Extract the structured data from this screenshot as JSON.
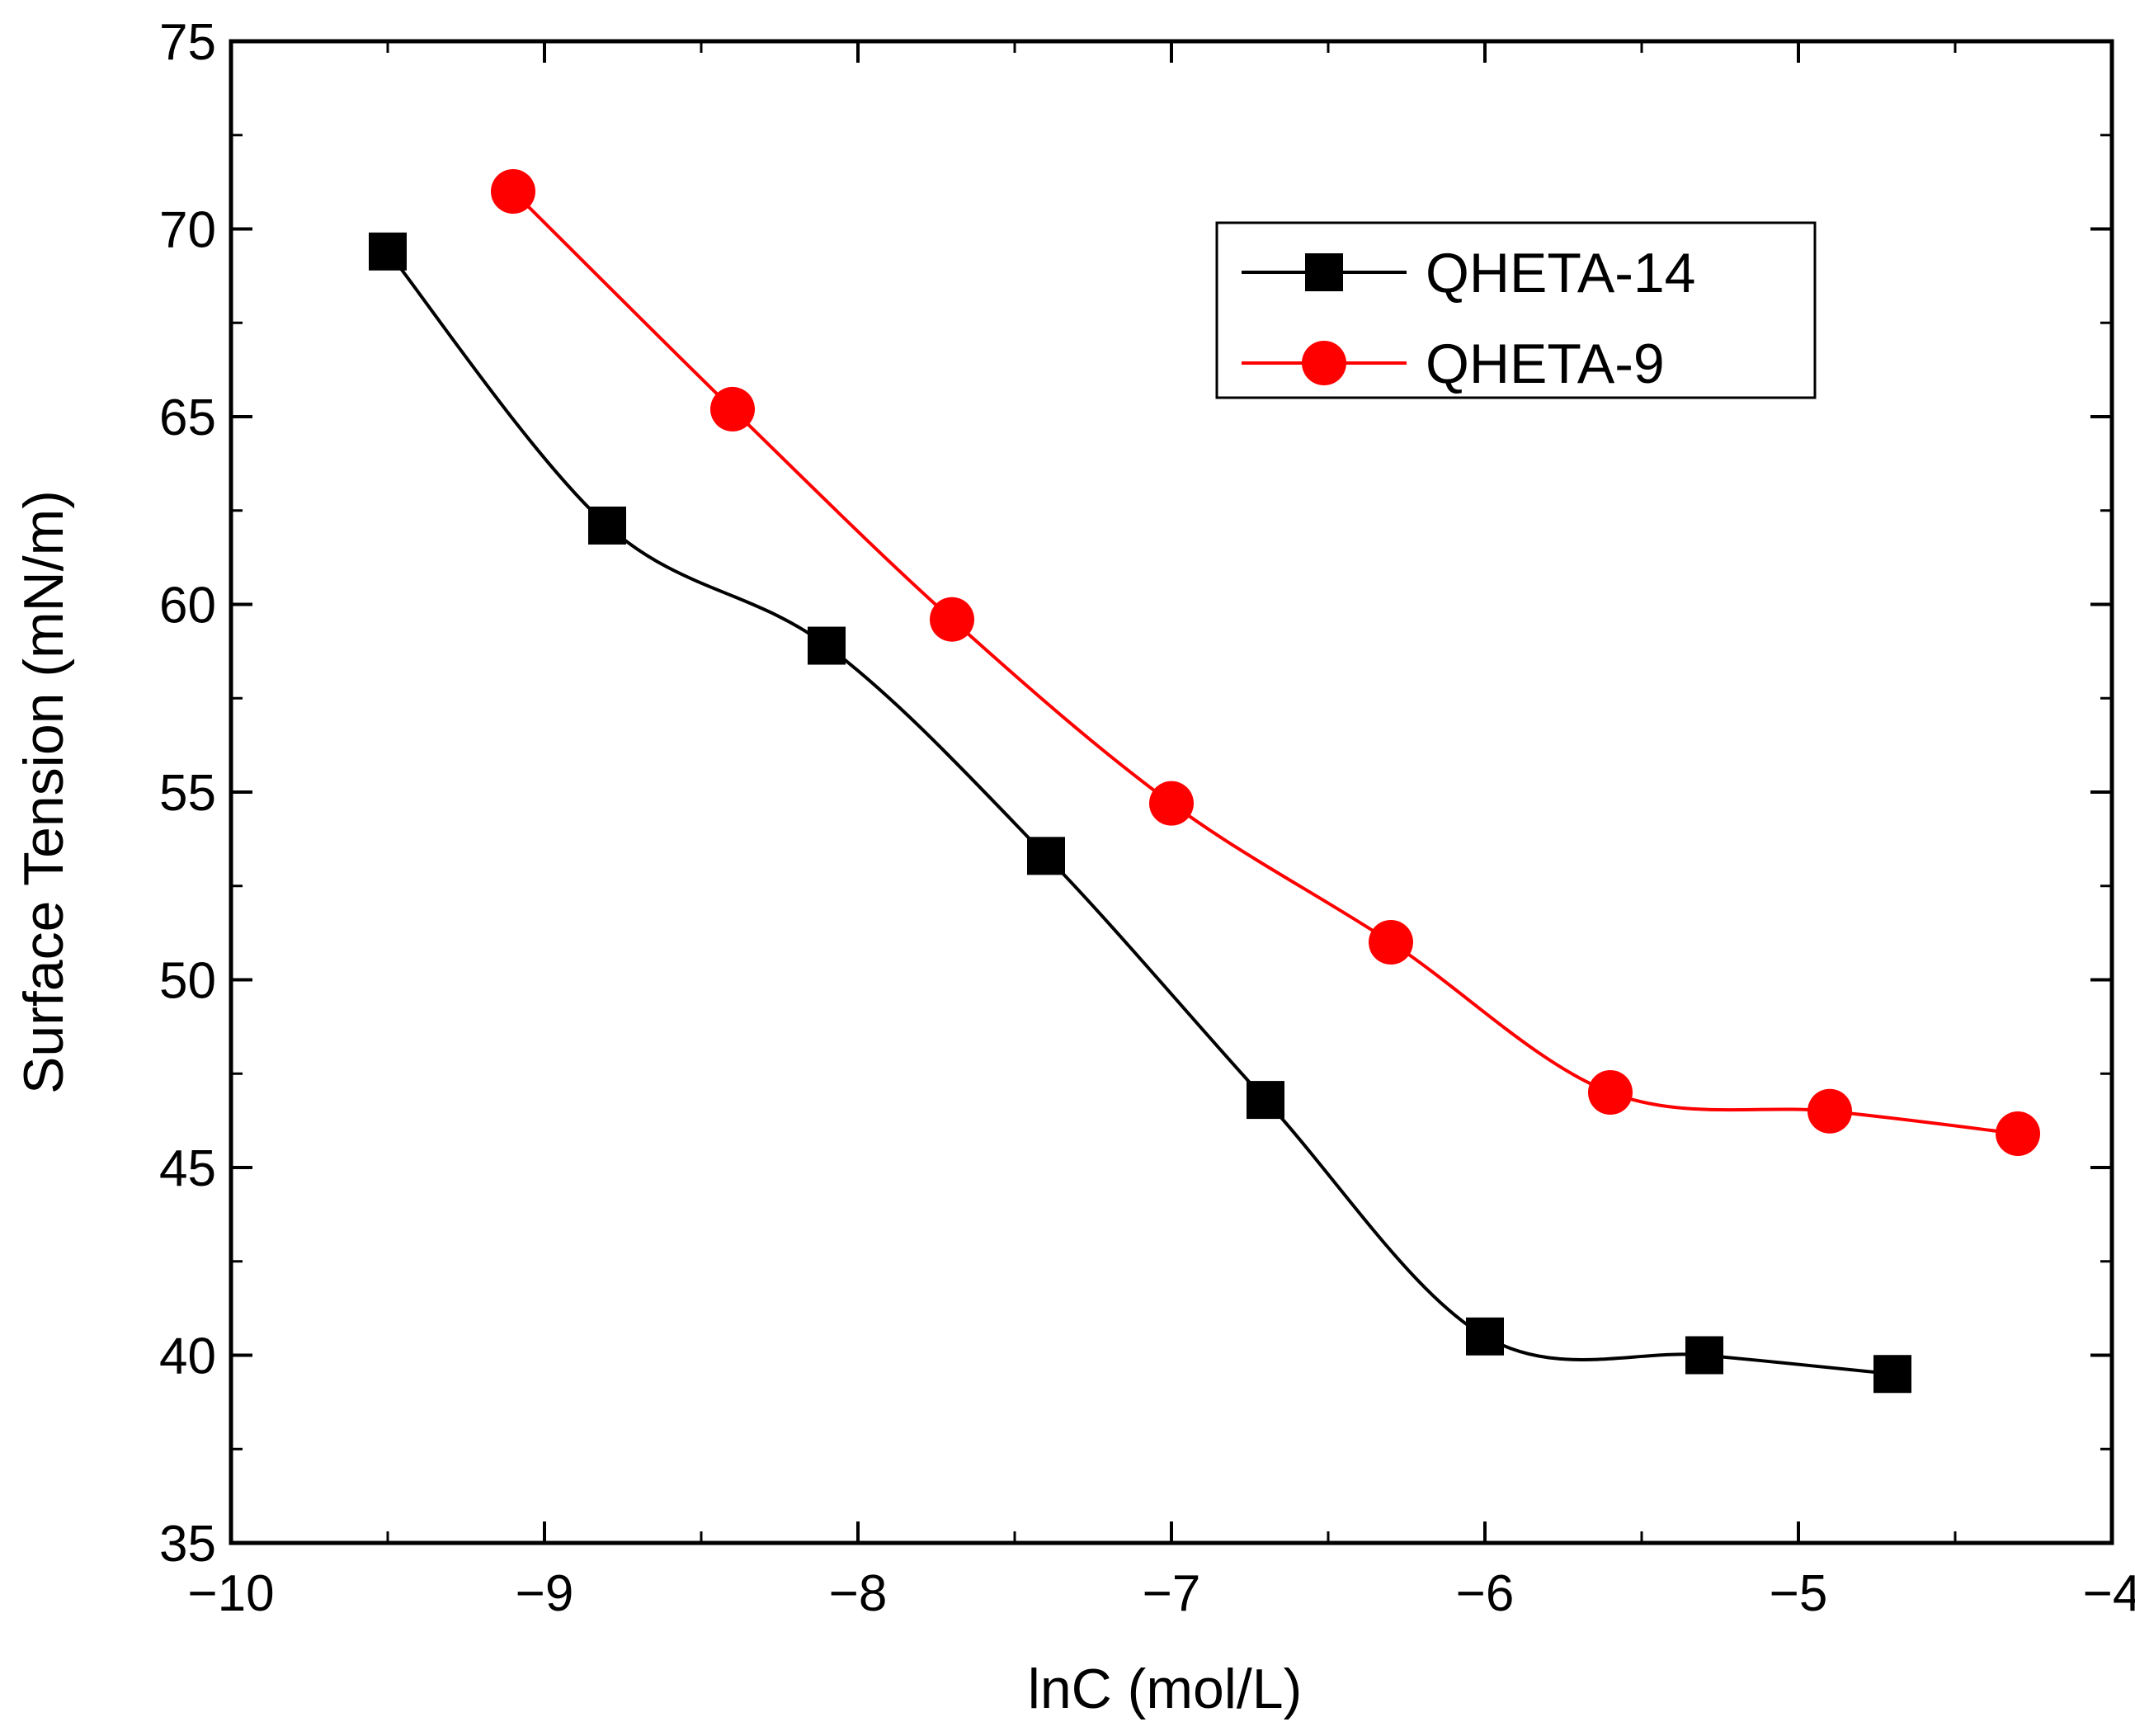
{
  "chart_data": {
    "type": "line",
    "title": "",
    "xlabel": "lnC (mol/L)",
    "ylabel": "Surface Tension (mN/m)",
    "xlim": [
      -10,
      -4
    ],
    "ylim": [
      35,
      75
    ],
    "x_ticks": [
      -10,
      -9,
      -8,
      -7,
      -6,
      -5,
      -4
    ],
    "x_tick_labels": [
      "−10",
      "−9",
      "−8",
      "−7",
      "−6",
      "−5",
      "−4"
    ],
    "y_ticks": [
      35,
      40,
      45,
      50,
      55,
      60,
      65,
      70,
      75
    ],
    "y_tick_labels": [
      "35",
      "40",
      "45",
      "50",
      "55",
      "60",
      "65",
      "70",
      "75"
    ],
    "grid": false,
    "legend_position": "top-right",
    "series": [
      {
        "name": "QHETA-14",
        "color": "#000000",
        "marker": "square",
        "x": [
          -9.5,
          -8.8,
          -8.1,
          -7.4,
          -6.7,
          -6.0,
          -5.3,
          -4.7
        ],
        "y": [
          69.4,
          62.1,
          58.9,
          53.3,
          46.8,
          40.5,
          40.0,
          39.5
        ]
      },
      {
        "name": "QHETA-9",
        "color": "#ff0000",
        "marker": "circle",
        "x": [
          -9.1,
          -8.4,
          -7.7,
          -7.0,
          -6.3,
          -5.6,
          -4.9,
          -4.3
        ],
        "y": [
          71.0,
          65.2,
          59.6,
          54.7,
          51.0,
          47.0,
          46.5,
          45.9
        ]
      }
    ]
  }
}
